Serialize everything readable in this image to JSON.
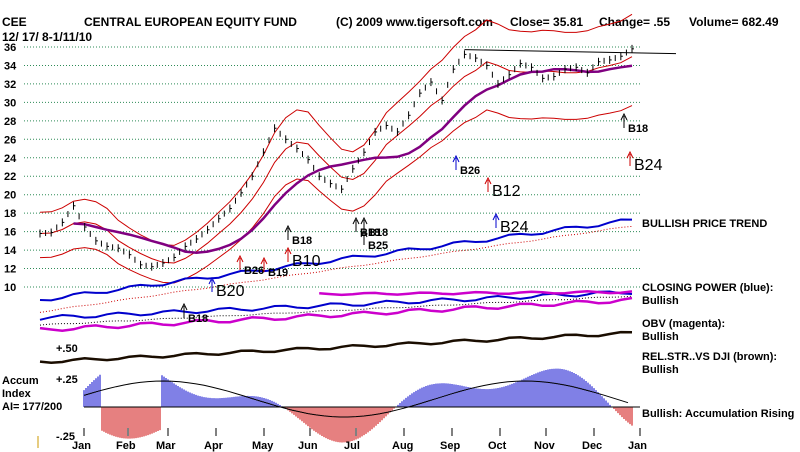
{
  "header": {
    "symbol": "CEE",
    "title": "CENTRAL EUROPEAN EQUITY FUND",
    "copyright": "(C) 2009 www.tigersoft.com",
    "close": "Close=  35.81",
    "change": "Change= .55",
    "volume": "Volume= 682.49",
    "date_range": "12/ 17/ 8-1/11/10"
  },
  "chart_data": {
    "type": "line",
    "title": "CENTRAL EUROPEAN EQUITY FUND",
    "ylim": [
      10,
      36
    ],
    "y_ticks": [
      "36",
      "34",
      "32",
      "30",
      "28",
      "26",
      "24",
      "22",
      "20",
      "18",
      "16",
      "14",
      "12",
      "10"
    ],
    "x_ticks": [
      "Jan",
      "Feb",
      "Mar",
      "Apr",
      "May",
      "Jun",
      "Jul",
      "Aug",
      "Sep",
      "Oct",
      "Nov",
      "Dec",
      "Jan"
    ],
    "price_series": [
      [
        0,
        15.8
      ],
      [
        1,
        15.9
      ],
      [
        2,
        17.0
      ],
      [
        3,
        18.8
      ],
      [
        4,
        16.5
      ],
      [
        5,
        15.0
      ],
      [
        6,
        14.4
      ],
      [
        7,
        14.2
      ],
      [
        8,
        13.5
      ],
      [
        9,
        12.4
      ],
      [
        10,
        12.2
      ],
      [
        11,
        12.6
      ],
      [
        12,
        13.2
      ],
      [
        13,
        14.4
      ],
      [
        14,
        15.2
      ],
      [
        15,
        16.2
      ],
      [
        16,
        17.4
      ],
      [
        17,
        18.5
      ],
      [
        18,
        20.2
      ],
      [
        19,
        22.0
      ],
      [
        20,
        24.6
      ],
      [
        21,
        27.2
      ],
      [
        22,
        26.0
      ],
      [
        23,
        25.0
      ],
      [
        24,
        23.8
      ],
      [
        25,
        22.0
      ],
      [
        26,
        21.2
      ],
      [
        27,
        20.6
      ],
      [
        28,
        22.8
      ],
      [
        29,
        24.6
      ],
      [
        30,
        26.8
      ],
      [
        31,
        27.5
      ],
      [
        32,
        26.8
      ],
      [
        33,
        28.6
      ],
      [
        34,
        31.0
      ],
      [
        35,
        32.2
      ],
      [
        36,
        30.2
      ],
      [
        37,
        33.6
      ],
      [
        38,
        35.2
      ],
      [
        39,
        34.8
      ],
      [
        40,
        34.0
      ],
      [
        41,
        32.0
      ],
      [
        42,
        33.0
      ],
      [
        43,
        34.2
      ],
      [
        44,
        33.8
      ],
      [
        45,
        32.6
      ],
      [
        46,
        32.8
      ],
      [
        47,
        33.6
      ],
      [
        48,
        33.8
      ],
      [
        49,
        33.2
      ],
      [
        50,
        34.4
      ],
      [
        51,
        34.6
      ],
      [
        52,
        35.0
      ],
      [
        53,
        35.8
      ]
    ],
    "series": [
      {
        "name": "21-day moving average",
        "color": "#cc0000"
      },
      {
        "name": "65-day moving average",
        "color": "#800080"
      },
      {
        "name": "upper band",
        "color": "#cc0000"
      },
      {
        "name": "lower band",
        "color": "#cc0000"
      },
      {
        "name": "Relative strength line",
        "color": "#0000cc"
      },
      {
        "name": "Closing Power",
        "color": "#0000cc"
      },
      {
        "name": "OBV",
        "color": "#cc00cc"
      },
      {
        "name": "Rel. Str. vs DJI",
        "color": "#663300"
      },
      {
        "name": "Accumulation Index",
        "color": "#0000cc"
      }
    ],
    "resistance_line": 35.5,
    "signals": [
      {
        "label": "B26",
        "dir": "up",
        "color": "#cc0000"
      },
      {
        "label": "B19",
        "dir": "up",
        "color": "#cc0000"
      },
      {
        "label": "B10",
        "dir": "up",
        "color": "#cc0000"
      },
      {
        "label": "B20",
        "dir": "up",
        "color": "#0000cc"
      },
      {
        "label": "B18",
        "dir": "up",
        "color": "#000000"
      },
      {
        "label": "B18",
        "dir": "up",
        "color": "#000000"
      },
      {
        "label": "B18",
        "dir": "up",
        "color": "#000000"
      },
      {
        "label": "B25",
        "dir": "up",
        "color": "#000000"
      },
      {
        "label": "B18",
        "dir": "up",
        "color": "#000000"
      },
      {
        "label": "B26",
        "dir": "up",
        "color": "#0000cc"
      },
      {
        "label": "B12",
        "dir": "up",
        "color": "#cc0000"
      },
      {
        "label": "B24",
        "dir": "up",
        "color": "#0000cc"
      },
      {
        "label": "B18",
        "dir": "up",
        "color": "#000000"
      },
      {
        "label": "B24",
        "dir": "up",
        "color": "#cc0000"
      }
    ],
    "accum_labels": {
      "ai_line1": "Accum",
      "ai_line2": "Index",
      "ai_value": "AI= 177/200",
      "plus50": "+.50",
      "plus25": "+.25",
      "minus25": "-.25"
    }
  },
  "right_notes": {
    "trend": "BULLISH PRICE TREND",
    "cp_title": "CLOSING POWER (blue):",
    "cp_value": "Bullish",
    "obv_title": "OBV (magenta):",
    "obv_value": "Bullish",
    "rs_title": "REL.STR..VS DJI (brown):",
    "rs_value": "Bullish",
    "accum": "Bullish: Accumulation Rising"
  },
  "colors": {
    "red": "#cc0000",
    "purple": "#800080",
    "blue": "#0000cc",
    "magenta": "#cc00cc",
    "brown": "#663300",
    "grid": "#2e8b57"
  }
}
